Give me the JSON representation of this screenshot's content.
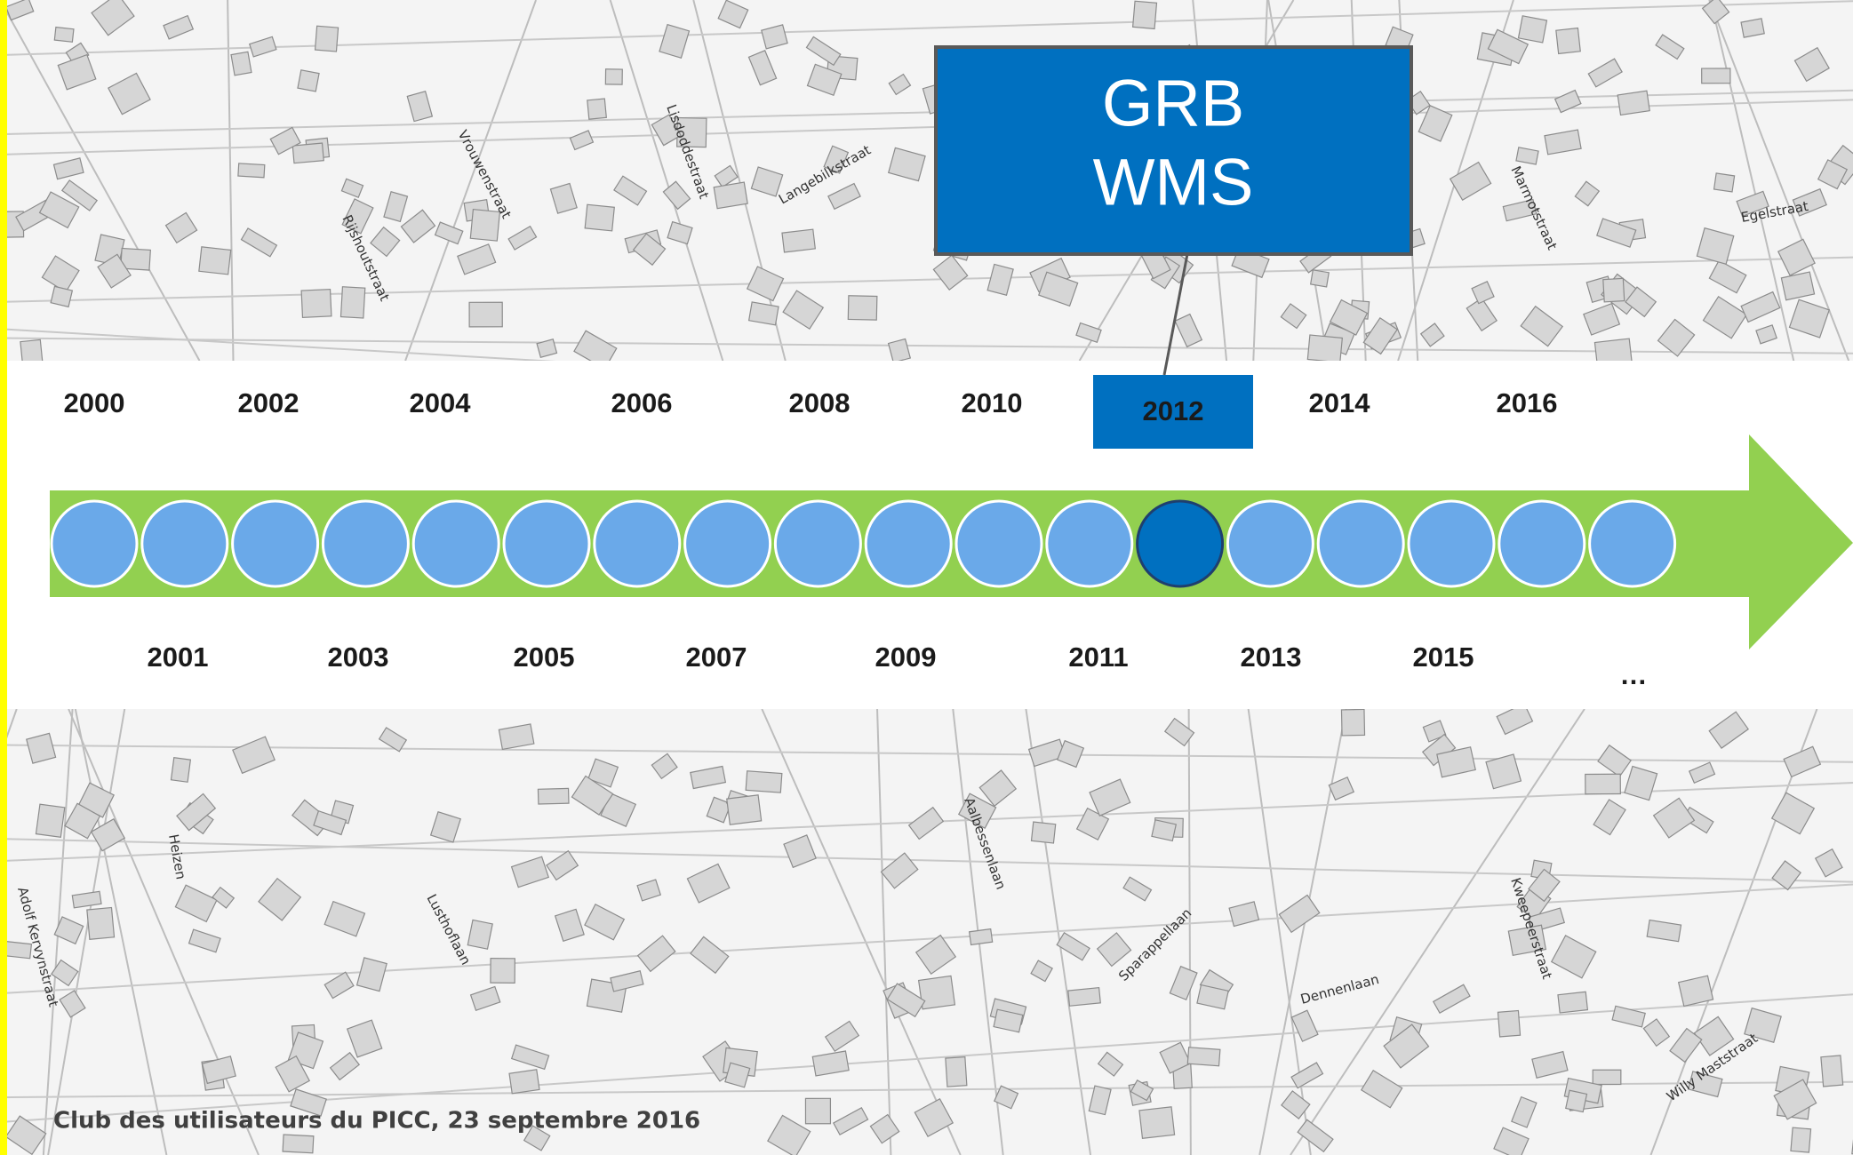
{
  "header": {
    "title": [
      "GRB",
      "WMS"
    ]
  },
  "timeline": {
    "years_top": [
      "2000",
      "2002",
      "2004",
      "2006",
      "2008",
      "2010",
      "2012",
      "2014",
      "2016"
    ],
    "years_bottom": [
      "2001",
      "2003",
      "2005",
      "2007",
      "2009",
      "2011",
      "2013",
      "2015",
      "…"
    ],
    "highlight": "2012"
  },
  "map": {
    "street_labels": [
      "Vrouwenstraat",
      "Rijshoutstraat",
      "Lisdoddestraat",
      "Langebilkstraat",
      "Marmotstraat",
      "Egelstraat",
      "Heizen",
      "Adolf Kervynstraat",
      "Lusthoflaan",
      "Aalbessenlaan",
      "Sparappellaan",
      "Dennenlaan",
      "Kweepeerstraat",
      "Willy Maststraat"
    ]
  },
  "footer": {
    "text": "Club des utilisateurs du PICC, 23 septembre 2016"
  }
}
